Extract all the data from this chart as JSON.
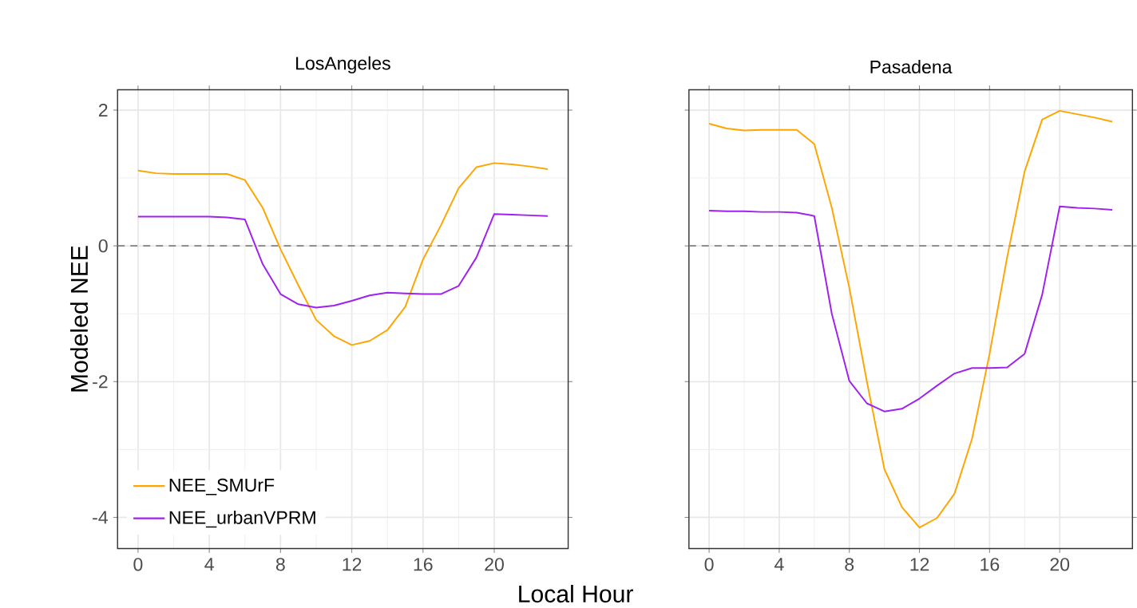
{
  "chart_data": [
    {
      "type": "line",
      "title": "LosAngeles",
      "xlabel": "Local Hour",
      "ylabel": "Modeled NEE",
      "x": [
        0,
        1,
        2,
        3,
        4,
        5,
        6,
        7,
        8,
        9,
        10,
        11,
        12,
        13,
        14,
        15,
        16,
        17,
        18,
        19,
        20,
        21,
        22,
        23
      ],
      "series": [
        {
          "name": "NEE_SMUrF",
          "color": "#ffa500",
          "values": [
            1.11,
            1.07,
            1.06,
            1.06,
            1.06,
            1.06,
            0.97,
            0.56,
            -0.05,
            -0.58,
            -1.09,
            -1.33,
            -1.46,
            -1.4,
            -1.24,
            -0.9,
            -0.2,
            0.3,
            0.85,
            1.16,
            1.22,
            1.2,
            1.17,
            1.13
          ]
        },
        {
          "name": "NEE_urbanVPRM",
          "color": "#a020f0",
          "values": [
            0.43,
            0.43,
            0.43,
            0.43,
            0.43,
            0.42,
            0.39,
            -0.27,
            -0.71,
            -0.86,
            -0.91,
            -0.88,
            -0.81,
            -0.73,
            -0.69,
            -0.7,
            -0.71,
            -0.71,
            -0.59,
            -0.17,
            0.47,
            0.46,
            0.45,
            0.44
          ]
        }
      ],
      "xlim": [
        -1.15,
        24.15
      ],
      "ylim": [
        -4.46,
        2.3
      ],
      "xticks": [
        0,
        4,
        8,
        12,
        16,
        20
      ],
      "yticks": [
        -4,
        -2,
        0,
        2
      ],
      "ref_lines": [
        {
          "axis": "y",
          "value": 0,
          "color": "#808080",
          "line_style": "dashed"
        }
      ],
      "grid": true,
      "legend": "bottom left"
    },
    {
      "type": "line",
      "title": "Pasadena",
      "x": [
        0,
        1,
        2,
        3,
        4,
        5,
        6,
        7,
        8,
        9,
        10,
        11,
        12,
        13,
        14,
        15,
        16,
        17,
        18,
        19,
        20,
        21,
        22,
        23
      ],
      "series": [
        {
          "color": "#ffa500",
          "values": [
            1.8,
            1.73,
            1.7,
            1.71,
            1.71,
            1.71,
            1.5,
            0.56,
            -0.62,
            -2.0,
            -3.29,
            -3.85,
            -4.15,
            -4.01,
            -3.65,
            -2.84,
            -1.59,
            -0.17,
            1.1,
            1.86,
            1.99,
            1.94,
            1.89,
            1.83
          ]
        },
        {
          "color": "#a020f0",
          "values": [
            0.52,
            0.51,
            0.51,
            0.5,
            0.5,
            0.49,
            0.44,
            -1.0,
            -1.99,
            -2.32,
            -2.44,
            -2.4,
            -2.25,
            -2.06,
            -1.88,
            -1.8,
            -1.8,
            -1.79,
            -1.59,
            -0.72,
            0.58,
            0.56,
            0.55,
            0.53
          ]
        }
      ],
      "xlim": [
        -1.15,
        24.15
      ],
      "ylim": [
        -4.46,
        2.3
      ],
      "xticks": [
        0,
        4,
        8,
        12,
        16,
        20
      ],
      "yticks": [
        -4,
        -2,
        0,
        2
      ],
      "ref_lines": [
        {
          "axis": "y",
          "value": 0,
          "color": "#808080",
          "line_style": "dashed"
        }
      ],
      "grid": true,
      "legend": false,
      "tick_labels": "x"
    }
  ]
}
